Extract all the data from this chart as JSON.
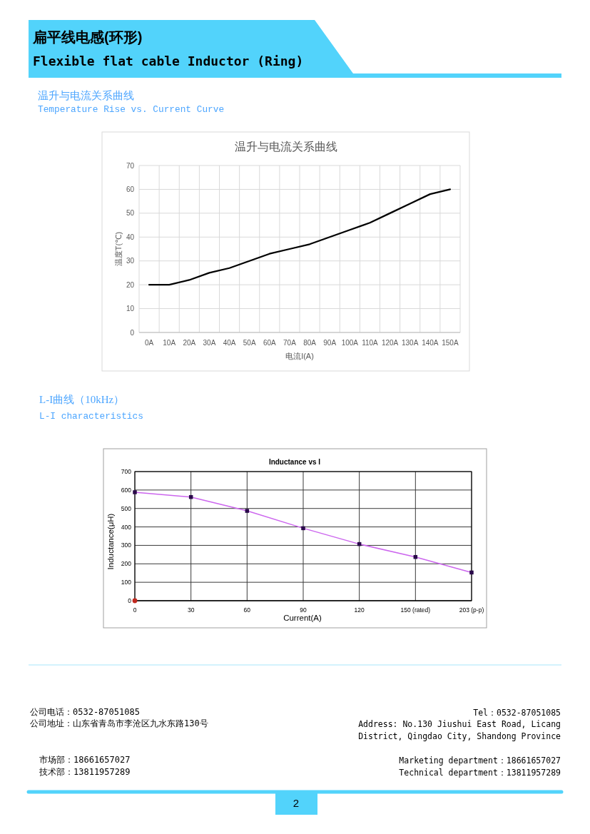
{
  "chart_data": [
    {
      "type": "line",
      "title": "温升与电流关系曲线",
      "xlabel": "电流I(A)",
      "ylabel": "温度T(℃)",
      "categories": [
        "0A",
        "10A",
        "20A",
        "30A",
        "40A",
        "50A",
        "60A",
        "70A",
        "80A",
        "90A",
        "100A",
        "110A",
        "120A",
        "130A",
        "140A",
        "150A"
      ],
      "series": [
        {
          "color": "#000000",
          "values": [
            20,
            20,
            22,
            25,
            27,
            30,
            33,
            35,
            37,
            40,
            43,
            46,
            50,
            54,
            58,
            60
          ]
        }
      ],
      "ylim": [
        0,
        70
      ],
      "yticks": [
        0,
        10,
        20,
        30,
        40,
        50,
        60,
        70
      ],
      "grid": true,
      "annotations": [
        "扁平线电感(环形)",
        "Flexible flat cable Inductor (Ring)",
        "温升与电流关系曲线",
        "Temperature Rise vs. Current Curve"
      ]
    },
    {
      "type": "line",
      "title": "Inductance vs I",
      "xlabel": "Current(A)",
      "ylabel": "Inductance(μH)",
      "categories": [
        "0",
        "30",
        "60",
        "90",
        "120",
        "150 (rated)",
        "203 (p-p)"
      ],
      "series": [
        {
          "color": "#cc66ee",
          "colors": [
            "#2a0a4a",
            "#2a0a4a",
            "#2a0a4a",
            "#2a0a4a",
            "#2a0a4a",
            "#2a0a4a",
            "#2a0a4a"
          ],
          "values": [
            588,
            562,
            487,
            393,
            307,
            237,
            153
          ]
        },
        {
          "type": "scatter",
          "marker": "circle",
          "color": "#c0281e",
          "values": [
            0,
            null,
            null,
            null,
            null,
            null,
            null
          ]
        }
      ],
      "ylim": [
        0,
        700
      ],
      "yticks": [
        0,
        100,
        200,
        300,
        400,
        500,
        600,
        700
      ],
      "grid": true,
      "marker": "square",
      "annotations": [
        "L-I曲线（10kHz）",
        "L-I characteristics",
        "公司电话：0532-87051085",
        "公司地址：山东省青岛市李沧区九水东路130号",
        "市场部：18661657027",
        "技术部：13811957289",
        "Tel：0532-87051085",
        "Address: No.130 Jiushui East Road, Licang District, Qingdao City, Shandong Province",
        "Marketing department：18661657027",
        "Technical department：13811957289",
        "2"
      ]
    }
  ]
}
